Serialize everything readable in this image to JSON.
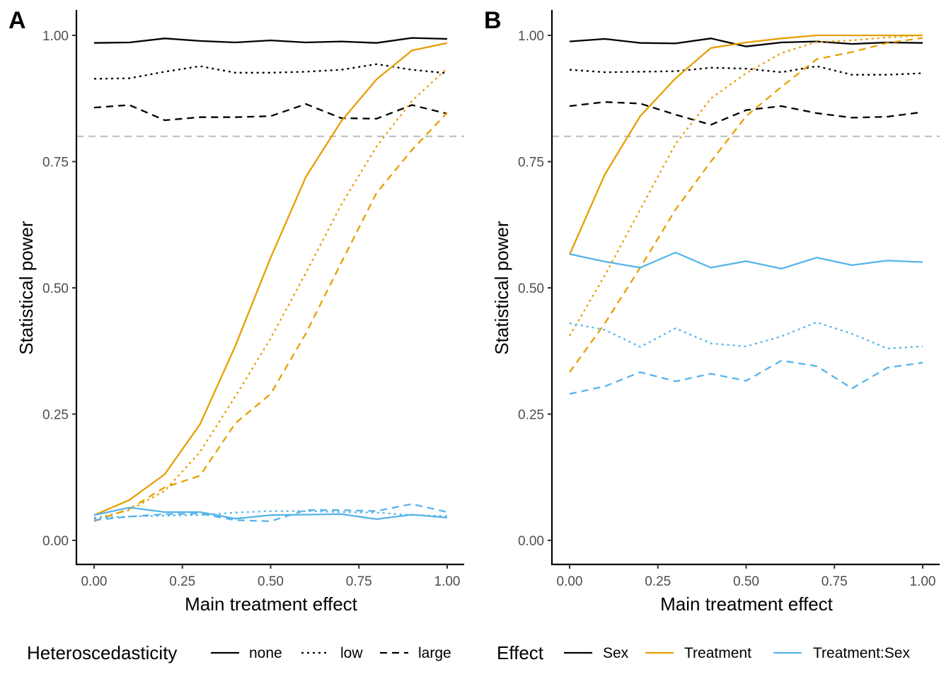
{
  "colors": {
    "Sex": "#000000",
    "Treatment": "#E69F00",
    "Treatment:Sex": "#56B4E9",
    "reference_line": "#BBBBBB",
    "axis": "#000000",
    "tick_text": "#4D4D4D"
  },
  "linetypes": {
    "none": "solid",
    "low": "dotted",
    "large": "dashed"
  },
  "legends": {
    "heteroscedasticity": {
      "title": "Heteroscedasticity",
      "labels": [
        "none",
        "low",
        "large"
      ]
    },
    "effect": {
      "title": "Effect",
      "labels": [
        "Sex",
        "Treatment",
        "Treatment:Sex"
      ]
    }
  },
  "chart_data": [
    {
      "panel": "A",
      "type": "line",
      "xlabel": "Main treatment effect",
      "ylabel": "Statistical power",
      "xlim": [
        0,
        1
      ],
      "ylim": [
        0,
        1
      ],
      "x_ticks": [
        "0.00",
        "0.25",
        "0.50",
        "0.75",
        "1.00"
      ],
      "y_ticks": [
        "0.00",
        "0.25",
        "0.50",
        "0.75",
        "1.00"
      ],
      "reference_line": 0.8,
      "grid": false,
      "legend_position": "bottom",
      "x": [
        0,
        0.1,
        0.2,
        0.3,
        0.4,
        0.5,
        0.6,
        0.7,
        0.8,
        0.9,
        1.0
      ],
      "series": [
        {
          "effect": "Sex",
          "heteroscedasticity": "none",
          "values": [
            0.985,
            0.986,
            0.994,
            0.989,
            0.986,
            0.99,
            0.986,
            0.988,
            0.985,
            0.995,
            0.993
          ]
        },
        {
          "effect": "Sex",
          "heteroscedasticity": "low",
          "values": [
            0.914,
            0.915,
            0.928,
            0.939,
            0.926,
            0.926,
            0.928,
            0.932,
            0.943,
            0.932,
            0.925
          ]
        },
        {
          "effect": "Sex",
          "heteroscedasticity": "large",
          "values": [
            0.857,
            0.862,
            0.832,
            0.838,
            0.838,
            0.84,
            0.864,
            0.836,
            0.835,
            0.862,
            0.845
          ]
        },
        {
          "effect": "Treatment",
          "heteroscedasticity": "none",
          "values": [
            0.05,
            0.08,
            0.131,
            0.23,
            0.385,
            0.56,
            0.72,
            0.83,
            0.913,
            0.97,
            0.985
          ]
        },
        {
          "effect": "Treatment",
          "heteroscedasticity": "low",
          "values": [
            0.043,
            0.06,
            0.098,
            0.175,
            0.285,
            0.4,
            0.53,
            0.665,
            0.78,
            0.87,
            0.935
          ]
        },
        {
          "effect": "Treatment",
          "heteroscedasticity": "large",
          "values": [
            0.038,
            0.062,
            0.105,
            0.128,
            0.232,
            0.29,
            0.41,
            0.55,
            0.688,
            0.773,
            0.847
          ]
        },
        {
          "effect": "Treatment:Sex",
          "heteroscedasticity": "none",
          "values": [
            0.05,
            0.065,
            0.056,
            0.056,
            0.043,
            0.05,
            0.051,
            0.052,
            0.042,
            0.051,
            0.045
          ]
        },
        {
          "effect": "Treatment:Sex",
          "heteroscedasticity": "low",
          "values": [
            0.045,
            0.047,
            0.049,
            0.05,
            0.055,
            0.058,
            0.058,
            0.056,
            0.055,
            0.05,
            0.048
          ]
        },
        {
          "effect": "Treatment:Sex",
          "heteroscedasticity": "large",
          "values": [
            0.04,
            0.047,
            0.052,
            0.053,
            0.04,
            0.038,
            0.06,
            0.06,
            0.058,
            0.072,
            0.056
          ]
        }
      ]
    },
    {
      "panel": "B",
      "type": "line",
      "xlabel": "Main treatment effect",
      "ylabel": "Statistical power",
      "xlim": [
        0,
        1
      ],
      "ylim": [
        0,
        1
      ],
      "x_ticks": [
        "0.00",
        "0.25",
        "0.50",
        "0.75",
        "1.00"
      ],
      "y_ticks": [
        "0.00",
        "0.25",
        "0.50",
        "0.75",
        "1.00"
      ],
      "reference_line": 0.8,
      "grid": false,
      "legend_position": "bottom",
      "x": [
        0,
        0.1,
        0.2,
        0.3,
        0.4,
        0.5,
        0.6,
        0.7,
        0.8,
        0.9,
        1.0
      ],
      "series": [
        {
          "effect": "Sex",
          "heteroscedasticity": "none",
          "values": [
            0.988,
            0.993,
            0.985,
            0.984,
            0.994,
            0.978,
            0.986,
            0.988,
            0.983,
            0.986,
            0.985
          ]
        },
        {
          "effect": "Sex",
          "heteroscedasticity": "low",
          "values": [
            0.932,
            0.927,
            0.928,
            0.929,
            0.936,
            0.934,
            0.927,
            0.939,
            0.922,
            0.922,
            0.925
          ]
        },
        {
          "effect": "Sex",
          "heteroscedasticity": "large",
          "values": [
            0.86,
            0.868,
            0.865,
            0.843,
            0.823,
            0.852,
            0.86,
            0.846,
            0.837,
            0.839,
            0.848
          ]
        },
        {
          "effect": "Treatment",
          "heteroscedasticity": "none",
          "values": [
            0.566,
            0.725,
            0.84,
            0.915,
            0.975,
            0.986,
            0.994,
            1.0,
            1.0,
            1.0,
            1.0
          ]
        },
        {
          "effect": "Treatment",
          "heteroscedasticity": "low",
          "values": [
            0.405,
            0.525,
            0.655,
            0.785,
            0.875,
            0.925,
            0.965,
            0.987,
            0.99,
            0.996,
            1.0
          ]
        },
        {
          "effect": "Treatment",
          "heteroscedasticity": "large",
          "values": [
            0.333,
            0.43,
            0.54,
            0.655,
            0.75,
            0.84,
            0.898,
            0.953,
            0.967,
            0.985,
            0.995
          ]
        },
        {
          "effect": "Treatment:Sex",
          "heteroscedasticity": "none",
          "values": [
            0.567,
            0.552,
            0.54,
            0.57,
            0.54,
            0.553,
            0.538,
            0.56,
            0.545,
            0.554,
            0.551
          ]
        },
        {
          "effect": "Treatment:Sex",
          "heteroscedasticity": "low",
          "values": [
            0.43,
            0.417,
            0.383,
            0.42,
            0.39,
            0.384,
            0.404,
            0.432,
            0.409,
            0.38,
            0.384
          ]
        },
        {
          "effect": "Treatment:Sex",
          "heteroscedasticity": "large",
          "values": [
            0.29,
            0.305,
            0.333,
            0.315,
            0.33,
            0.316,
            0.356,
            0.345,
            0.301,
            0.342,
            0.352
          ]
        }
      ]
    }
  ]
}
